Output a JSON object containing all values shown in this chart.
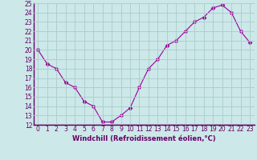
{
  "x": [
    0,
    1,
    2,
    3,
    4,
    5,
    6,
    7,
    8,
    9,
    10,
    11,
    12,
    13,
    14,
    15,
    16,
    17,
    18,
    19,
    20,
    21,
    22,
    23
  ],
  "y": [
    20.0,
    18.5,
    18.0,
    16.5,
    16.0,
    14.5,
    14.0,
    12.3,
    12.3,
    13.0,
    13.8,
    16.0,
    18.0,
    19.0,
    20.5,
    21.0,
    22.0,
    23.0,
    23.5,
    24.5,
    24.8,
    24.0,
    22.0,
    20.8
  ],
  "xlabel": "Windchill (Refroidissement éolien,°C)",
  "ylim": [
    12,
    25
  ],
  "xlim": [
    -0.5,
    23.5
  ],
  "yticks": [
    12,
    13,
    14,
    15,
    16,
    17,
    18,
    19,
    20,
    21,
    22,
    23,
    24,
    25
  ],
  "xticks": [
    0,
    1,
    2,
    3,
    4,
    5,
    6,
    7,
    8,
    9,
    10,
    11,
    12,
    13,
    14,
    15,
    16,
    17,
    18,
    19,
    20,
    21,
    22,
    23
  ],
  "line_color": "#990099",
  "marker_color": "#990099",
  "bg_color": "#cce8e8",
  "grid_color": "#aacccc",
  "label_color": "#660066",
  "tick_fontsize": 5.5,
  "xlabel_fontsize": 6.0
}
